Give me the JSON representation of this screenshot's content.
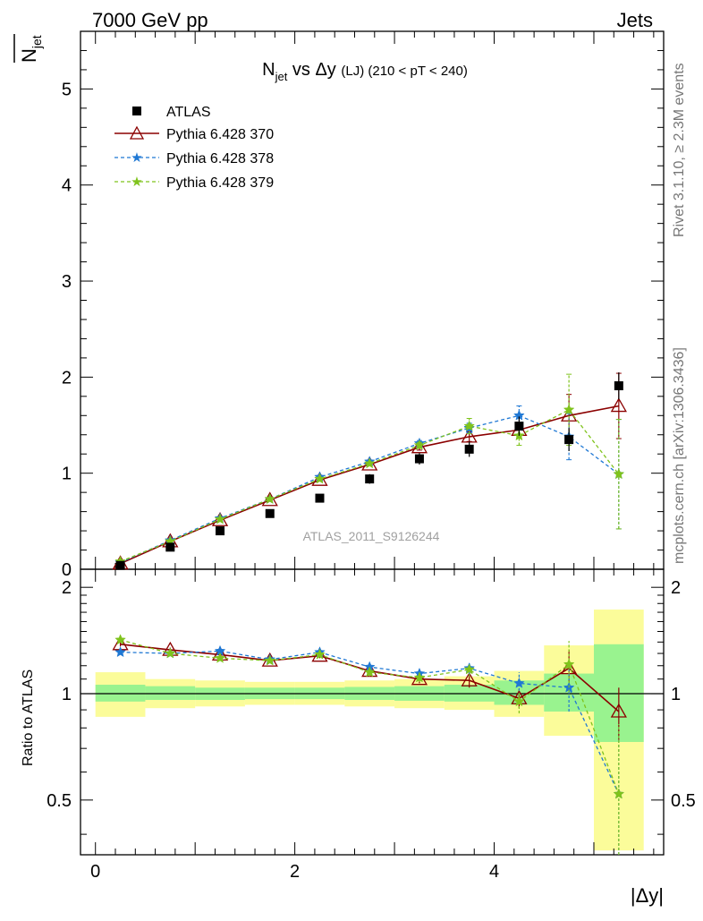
{
  "header": {
    "left": "7000 GeV pp",
    "right": "Jets",
    "side_rivet": "Rivet 3.1.10, ≥ 2.3M events",
    "side_mcplots": "mcplots.cern.ch [arXiv:1306.3436]"
  },
  "chart_data": {
    "type": "scatter",
    "title_main": "N",
    "title_main_sub": "jet",
    "title_vs": " vs Δy ",
    "title_small": "(LJ)",
    "title_range": " (210 < pT < 240)",
    "ylabel_main": "N",
    "ylabel_sub": "jet",
    "ylabel_ratio": "Ratio to ATLAS",
    "xlabel": "|Δy|",
    "watermark": "ATLAS_2011_S9126244",
    "xlim": [
      -0.15,
      5.7
    ],
    "ylim_main": [
      0,
      5.6
    ],
    "ylim_ratio": [
      0.35,
      2.25
    ],
    "x_ticks": [
      "0",
      "2",
      "4"
    ],
    "y_ticks_main": [
      "0",
      "1",
      "2",
      "3",
      "4",
      "5"
    ],
    "y_ticks_ratio": [
      "0.5",
      "1",
      "2"
    ],
    "x": [
      0.25,
      0.75,
      1.25,
      1.75,
      2.25,
      2.75,
      3.25,
      3.75,
      4.25,
      4.75,
      5.25
    ],
    "bin_edges": [
      0,
      0.5,
      1.0,
      1.5,
      2.0,
      2.5,
      3.0,
      3.5,
      4.0,
      4.5,
      5.0,
      5.5
    ],
    "series": [
      {
        "name": "ATLAS",
        "color": "#000000",
        "values": [
          0.04,
          0.23,
          0.4,
          0.58,
          0.74,
          0.94,
          1.15,
          1.25,
          1.49,
          1.35,
          1.91
        ],
        "errors": [
          0.01,
          0.02,
          0.03,
          0.03,
          0.04,
          0.05,
          0.06,
          0.08,
          0.1,
          0.12,
          0.14
        ]
      },
      {
        "name": "Pythia 6.428 370",
        "color": "#8b0000",
        "values": [
          0.06,
          0.29,
          0.51,
          0.72,
          0.93,
          1.09,
          1.27,
          1.38,
          1.45,
          1.6,
          1.7
        ],
        "errors": [
          0.005,
          0.01,
          0.01,
          0.015,
          0.02,
          0.02,
          0.03,
          0.05,
          0.08,
          0.22,
          0.34
        ],
        "ratio": [
          1.38,
          1.33,
          1.29,
          1.24,
          1.28,
          1.16,
          1.1,
          1.09,
          0.97,
          1.18,
          0.89
        ],
        "ratio_errors": [
          0.02,
          0.02,
          0.02,
          0.02,
          0.02,
          0.03,
          0.03,
          0.05,
          0.06,
          0.15,
          0.15
        ]
      },
      {
        "name": "Pythia 6.428 378",
        "color": "#1f78d4",
        "values": [
          0.07,
          0.3,
          0.53,
          0.73,
          0.96,
          1.12,
          1.31,
          1.47,
          1.6,
          1.38,
          0.99
        ],
        "errors": [
          0.005,
          0.01,
          0.01,
          0.015,
          0.02,
          0.02,
          0.03,
          0.05,
          0.1,
          0.24,
          0.57
        ],
        "ratio": [
          1.31,
          1.3,
          1.32,
          1.25,
          1.31,
          1.19,
          1.14,
          1.18,
          1.07,
          1.04,
          0.52
        ],
        "ratio_errors": [
          0.02,
          0.02,
          0.02,
          0.02,
          0.02,
          0.03,
          0.03,
          0.05,
          0.08,
          0.15,
          0.3
        ]
      },
      {
        "name": "Pythia 6.428 379",
        "color": "#7fc31c",
        "values": [
          0.08,
          0.29,
          0.52,
          0.73,
          0.94,
          1.1,
          1.29,
          1.49,
          1.39,
          1.66,
          0.99
        ],
        "errors": [
          0.005,
          0.01,
          0.01,
          0.015,
          0.02,
          0.02,
          0.03,
          0.08,
          0.1,
          0.37,
          0.57
        ],
        "ratio": [
          1.42,
          1.3,
          1.26,
          1.24,
          1.29,
          1.15,
          1.11,
          1.17,
          0.95,
          1.21,
          0.52
        ],
        "ratio_errors": [
          0.02,
          0.02,
          0.02,
          0.02,
          0.02,
          0.03,
          0.03,
          0.05,
          0.07,
          0.2,
          0.3
        ]
      }
    ],
    "bands": {
      "inner_color": "#99f38f",
      "outer_color": "#fbfc9a",
      "inner": [
        [
          0.95,
          1.06
        ],
        [
          0.96,
          1.05
        ],
        [
          0.96,
          1.04
        ],
        [
          0.965,
          1.04
        ],
        [
          0.965,
          1.04
        ],
        [
          0.96,
          1.045
        ],
        [
          0.955,
          1.05
        ],
        [
          0.95,
          1.06
        ],
        [
          0.93,
          1.09
        ],
        [
          0.89,
          1.14
        ],
        [
          0.73,
          1.38
        ]
      ],
      "outer": [
        [
          0.86,
          1.15
        ],
        [
          0.91,
          1.1
        ],
        [
          0.92,
          1.09
        ],
        [
          0.93,
          1.08
        ],
        [
          0.93,
          1.08
        ],
        [
          0.92,
          1.09
        ],
        [
          0.91,
          1.1
        ],
        [
          0.9,
          1.12
        ],
        [
          0.86,
          1.16
        ],
        [
          0.76,
          1.37
        ],
        [
          0.36,
          1.73
        ]
      ]
    }
  }
}
